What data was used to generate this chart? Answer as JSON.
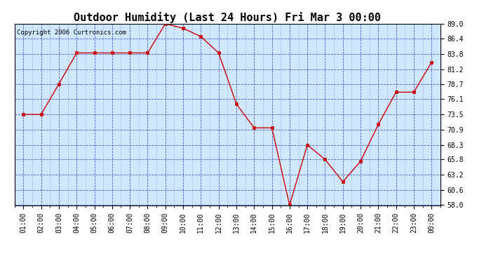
{
  "title": "Outdoor Humidity (Last 24 Hours) Fri Mar 3 00:00",
  "copyright": "Copyright 2006 Curtronics.com",
  "x_labels": [
    "01:00",
    "02:00",
    "03:00",
    "04:00",
    "05:00",
    "06:00",
    "07:00",
    "08:00",
    "09:00",
    "10:00",
    "11:00",
    "12:00",
    "13:00",
    "14:00",
    "15:00",
    "16:00",
    "17:00",
    "18:00",
    "19:00",
    "20:00",
    "21:00",
    "22:00",
    "23:00",
    "00:00"
  ],
  "y_values": [
    73.5,
    73.5,
    78.7,
    84.0,
    84.0,
    84.0,
    84.0,
    84.0,
    89.0,
    88.2,
    86.8,
    84.0,
    75.3,
    71.2,
    71.2,
    58.0,
    68.3,
    65.8,
    62.0,
    65.5,
    71.8,
    77.3,
    77.3,
    82.4
  ],
  "y_ticks": [
    58.0,
    60.6,
    63.2,
    65.8,
    68.3,
    70.9,
    73.5,
    76.1,
    78.7,
    81.2,
    83.8,
    86.4,
    89.0
  ],
  "ylim_min": 58.0,
  "ylim_max": 89.0,
  "line_color": "#cc0000",
  "marker": "s",
  "marker_size": 2.5,
  "marker_edge_width": 0.5,
  "bg_color": "#d0e8ff",
  "fig_bg_color": "#ffffff",
  "grid_color": "#3333cc",
  "grid_alpha": 0.8,
  "title_fontsize": 11,
  "tick_fontsize": 7,
  "copyright_fontsize": 6.5,
  "line_width": 1.0
}
